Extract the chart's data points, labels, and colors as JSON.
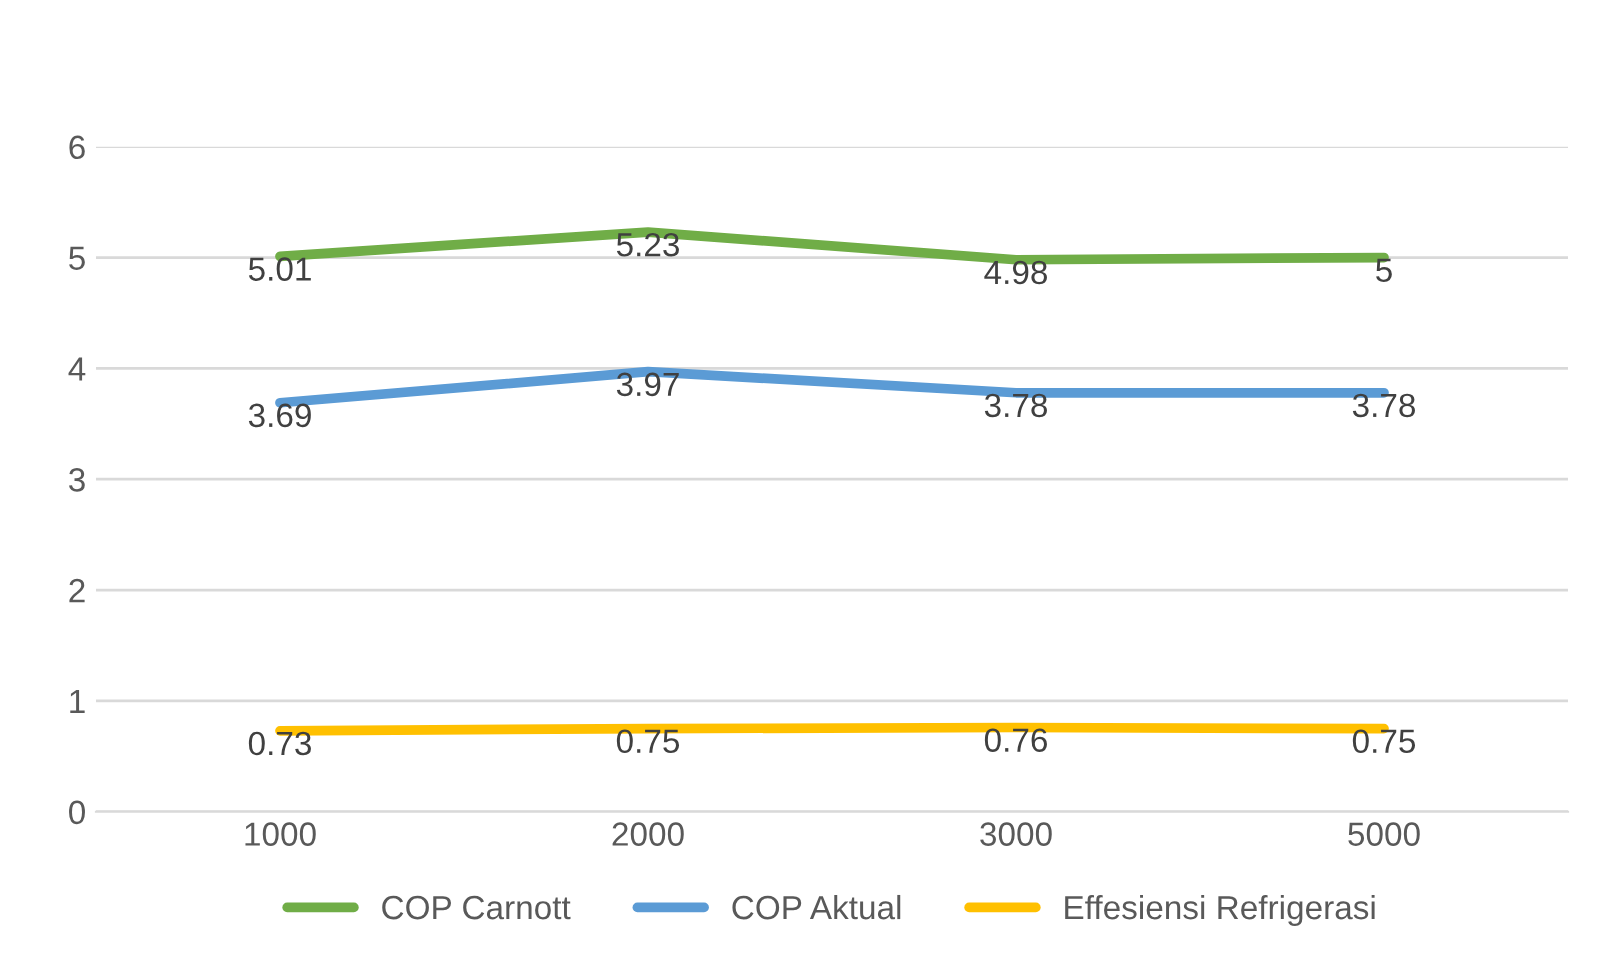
{
  "chart_data": {
    "type": "line",
    "categories": [
      "1000",
      "2000",
      "3000",
      "5000"
    ],
    "series": [
      {
        "name": "COP Carnott",
        "color": "#70ad47",
        "values": [
          5.01,
          5.23,
          4.98,
          5
        ]
      },
      {
        "name": "COP Aktual",
        "color": "#5b9bd5",
        "values": [
          3.69,
          3.97,
          3.78,
          3.78
        ]
      },
      {
        "name": "Effesiensi Refrigerasi",
        "color": "#ffc000",
        "values": [
          0.73,
          0.75,
          0.76,
          0.75
        ]
      }
    ],
    "ylim": [
      0,
      6
    ],
    "yticks": [
      0,
      1,
      2,
      3,
      4,
      5,
      6
    ],
    "grid": "y",
    "legend": "bottom",
    "data_labels": true,
    "marker": "none",
    "line_style": "solid"
  }
}
